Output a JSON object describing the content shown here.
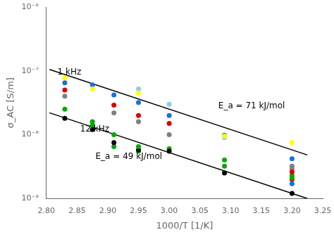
{
  "chart_data": {
    "type": "scatter",
    "xlabel": "1000/T [1/K]",
    "ylabel": "σ_AC [S/m]",
    "log": "y",
    "grid": false,
    "xlim": [
      2.8,
      3.25
    ],
    "xticks": [
      {
        "value": 2.8,
        "label": "2.80"
      },
      2.85,
      {
        "value": 2.9,
        "label": "2.90"
      },
      2.95,
      {
        "value": 3.0,
        "label": "3.00"
      },
      3.05,
      {
        "value": 3.1,
        "label": "3.10"
      },
      3.15,
      {
        "value": 3.2,
        "label": "3.20"
      },
      3.25
    ],
    "ylim": [
      1e-09,
      1e-06
    ],
    "yticks": [
      {
        "value": 1e-09,
        "label": "10⁻⁹"
      },
      {
        "value": 1e-08,
        "label": "10⁻⁸"
      },
      {
        "value": 1e-07,
        "label": "10⁻⁷"
      },
      {
        "value": 1e-06,
        "label": "10⁻⁶"
      }
    ],
    "series": [
      {
        "type": "scatter",
        "marker": "circle",
        "color": "#ffff00",
        "x": [
          2.83,
          2.875,
          2.95,
          3.09,
          3.2
        ],
        "values": [
          7.8e-08,
          5.2e-08,
          4.5e-08,
          9.5e-09,
          7.5e-09
        ]
      },
      {
        "type": "scatter",
        "marker": "circle",
        "color": "#1a6fdf",
        "x": [
          2.83,
          2.875,
          2.91,
          2.95,
          3.0,
          3.09,
          3.2
        ],
        "values": [
          6.5e-08,
          6e-08,
          4.2e-08,
          3.2e-08,
          2e-08,
          9.8e-09,
          4.2e-09
        ]
      },
      {
        "type": "scatter",
        "marker": "circle",
        "color": "#dd0000",
        "x": [
          2.83,
          2.91,
          2.95,
          3.0,
          3.2
        ],
        "values": [
          5e-08,
          2.9e-08,
          2e-08,
          1.5e-08,
          2.6e-09
        ]
      },
      {
        "type": "scatter",
        "marker": "circle",
        "color": "#808080",
        "x": [
          2.83,
          2.91,
          2.95,
          3.0,
          3.2
        ],
        "values": [
          4e-08,
          2.2e-08,
          1.6e-08,
          1e-08,
          3.2e-09
        ]
      },
      {
        "type": "scatter",
        "marker": "circle",
        "color": "#00aa00",
        "x": [
          2.83,
          2.875,
          2.91,
          2.95,
          3.09,
          3.2
        ],
        "values": [
          2.5e-08,
          1.6e-08,
          1e-08,
          6.5e-09,
          4e-09,
          2.3e-09
        ]
      },
      {
        "type": "scatter",
        "marker": "circle",
        "color": "#87ceeb",
        "x": [
          2.95,
          3.0,
          3.09
        ],
        "values": [
          5.2e-08,
          3e-08,
          9e-09
        ]
      },
      {
        "type": "scatter",
        "marker": "circle",
        "color": "#000000",
        "x": [
          2.83,
          2.875,
          2.91,
          2.95,
          3.0,
          3.09,
          3.2
        ],
        "values": [
          1.8e-08,
          1.2e-08,
          7.5e-09,
          5.8e-09,
          5.5e-09,
          2.5e-09,
          1.2e-09
        ]
      },
      {
        "type": "scatter",
        "marker": "circle",
        "color": "#00aa00",
        "x": [
          2.875,
          2.91,
          2.95,
          3.0,
          3.09,
          3.2
        ],
        "values": [
          1.4e-08,
          6.5e-09,
          5.5e-09,
          6e-09,
          3.2e-09,
          2.1e-09
        ]
      },
      {
        "type": "scatter",
        "marker": "circle",
        "color": "#1a6fdf",
        "x": [
          3.2
        ],
        "values": [
          1.7e-09
        ]
      },
      {
        "type": "scatter",
        "marker": "circle",
        "color": "#dd0000",
        "x": [
          3.2
        ],
        "values": [
          2e-09
        ]
      },
      {
        "type": "scatter",
        "marker": "circle",
        "color": "#ffff00",
        "x": [
          3.2
        ],
        "values": [
          1.9e-09
        ]
      },
      {
        "type": "scatter",
        "marker": "circle",
        "color": "#808080",
        "x": [
          3.2
        ],
        "values": [
          2.9e-09
        ]
      },
      {
        "type": "line",
        "line_style": "solid",
        "color": "#000000",
        "x": [
          2.805,
          3.225
        ],
        "values": [
          1.05e-07,
          4.8e-09
        ]
      },
      {
        "type": "line",
        "line_style": "solid",
        "color": "#000000",
        "x": [
          2.805,
          3.225
        ],
        "values": [
          2.2e-08,
          1e-09
        ]
      }
    ],
    "annotations": [
      {
        "text": "1 kHz",
        "x": 2.818,
        "y": 9.5e-08
      },
      {
        "text": "12 kHz",
        "x": 2.855,
        "y": 1.05e-08
      },
      {
        "text": "E_a = 71 kJ/mol",
        "x": 3.08,
        "y": 2.8e-08
      },
      {
        "text": "E_a = 49 kJ/mol",
        "x": 2.88,
        "y": 5.2e-09
      }
    ]
  }
}
